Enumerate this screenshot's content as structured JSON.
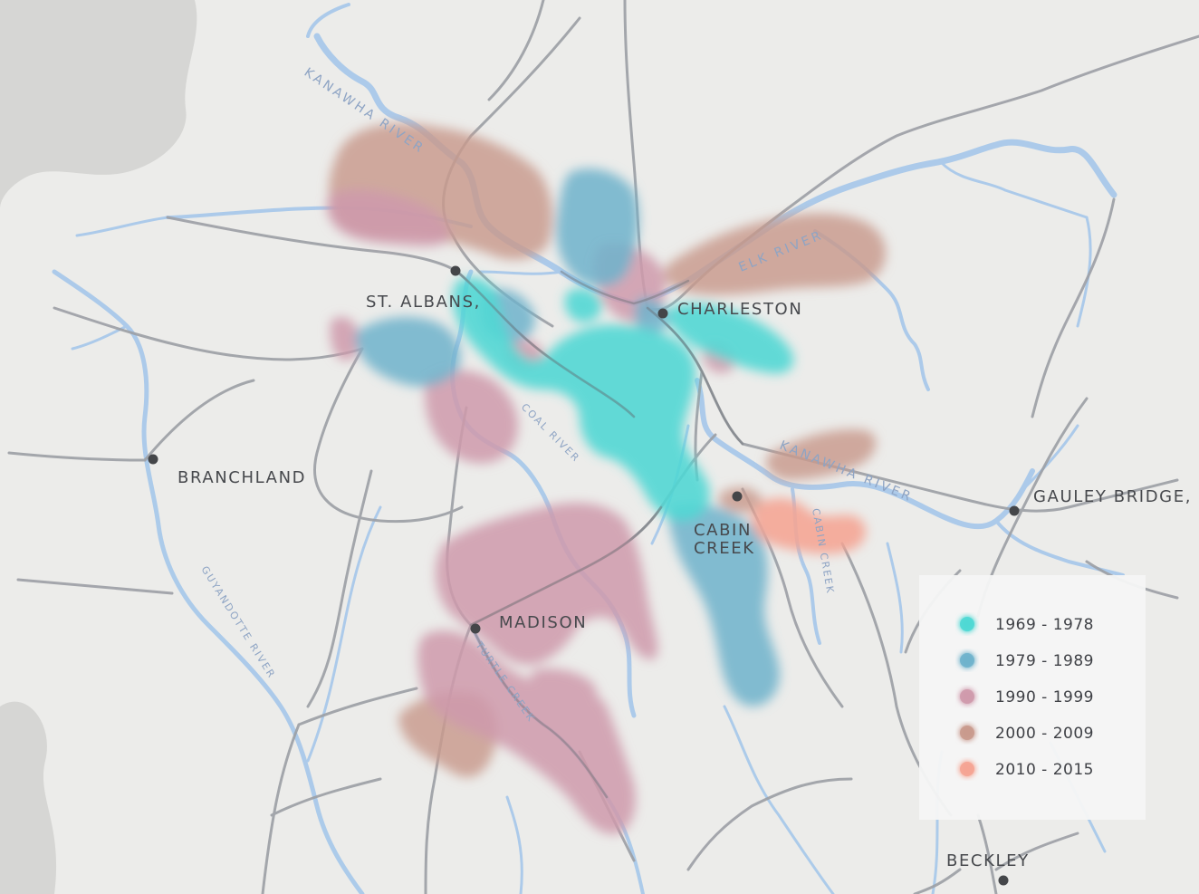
{
  "legend": {
    "items": [
      {
        "label": "1969 - 1978",
        "color": "#4fd8d4"
      },
      {
        "label": "1979 - 1989",
        "color": "#6fb3cc"
      },
      {
        "label": "1990 - 1999",
        "color": "#cf9aac"
      },
      {
        "label": "2000 - 2009",
        "color": "#c99a8d"
      },
      {
        "label": "2010 - 2015",
        "color": "#f5a493"
      }
    ]
  },
  "cities": {
    "st_albans": "ST. ALBANS,",
    "charleston": "CHARLESTON",
    "branchland": "BRANCHLAND",
    "cabin_creek_1": "CABIN",
    "cabin_creek_2": "CREEK",
    "gauley_bridge": "GAULEY BRIDGE,",
    "madison": "MADISON",
    "beckley": "BECKLEY"
  },
  "rivers": {
    "kanawha_north": "KANAWHA RIVER",
    "elk": "ELK RIVER",
    "coal": "COAL RIVER",
    "kanawha_east": "KANAWHA RIVER",
    "cabin_creek": "CABIN CREEK",
    "guyandotte": "GUYANDOTTE RIVER",
    "turtle_creek": "TURTLE CREEK"
  },
  "colors": {
    "background": "#ececea",
    "road": "#9c9fa5",
    "river": "#a9c9ea",
    "city_dot": "#444649"
  }
}
